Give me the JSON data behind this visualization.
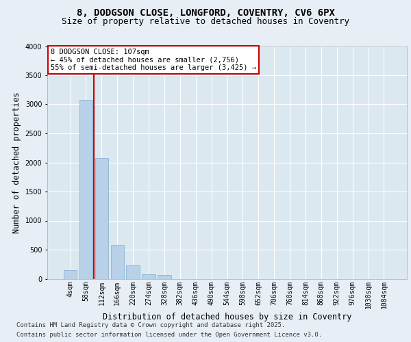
{
  "title_line1": "8, DODGSON CLOSE, LONGFORD, COVENTRY, CV6 6PX",
  "title_line2": "Size of property relative to detached houses in Coventry",
  "xlabel": "Distribution of detached houses by size in Coventry",
  "ylabel": "Number of detached properties",
  "categories": [
    "4sqm",
    "58sqm",
    "112sqm",
    "166sqm",
    "220sqm",
    "274sqm",
    "328sqm",
    "382sqm",
    "436sqm",
    "490sqm",
    "544sqm",
    "598sqm",
    "652sqm",
    "706sqm",
    "760sqm",
    "814sqm",
    "868sqm",
    "922sqm",
    "976sqm",
    "1030sqm",
    "1084sqm"
  ],
  "values": [
    150,
    3080,
    2080,
    580,
    230,
    75,
    60,
    0,
    0,
    0,
    0,
    0,
    0,
    0,
    0,
    0,
    0,
    0,
    0,
    0,
    0
  ],
  "bar_color": "#b8d0e8",
  "bar_edge_color": "#8ab4d4",
  "vline_x": 1.5,
  "vline_color": "#cc0000",
  "annotation_text": "8 DODGSON CLOSE: 107sqm\n← 45% of detached houses are smaller (2,756)\n55% of semi-detached houses are larger (3,425) →",
  "annotation_box_color": "#ffffff",
  "annotation_box_edge": "#cc0000",
  "ylim": [
    0,
    4000
  ],
  "yticks": [
    0,
    500,
    1000,
    1500,
    2000,
    2500,
    3000,
    3500,
    4000
  ],
  "bg_color": "#e8eef5",
  "plot_bg_color": "#dce8f0",
  "grid_color": "#ffffff",
  "footer_line1": "Contains HM Land Registry data © Crown copyright and database right 2025.",
  "footer_line2": "Contains public sector information licensed under the Open Government Licence v3.0.",
  "title_fontsize": 10,
  "subtitle_fontsize": 9,
  "axis_label_fontsize": 8.5,
  "tick_fontsize": 7,
  "annotation_fontsize": 7.5,
  "footer_fontsize": 6.5
}
